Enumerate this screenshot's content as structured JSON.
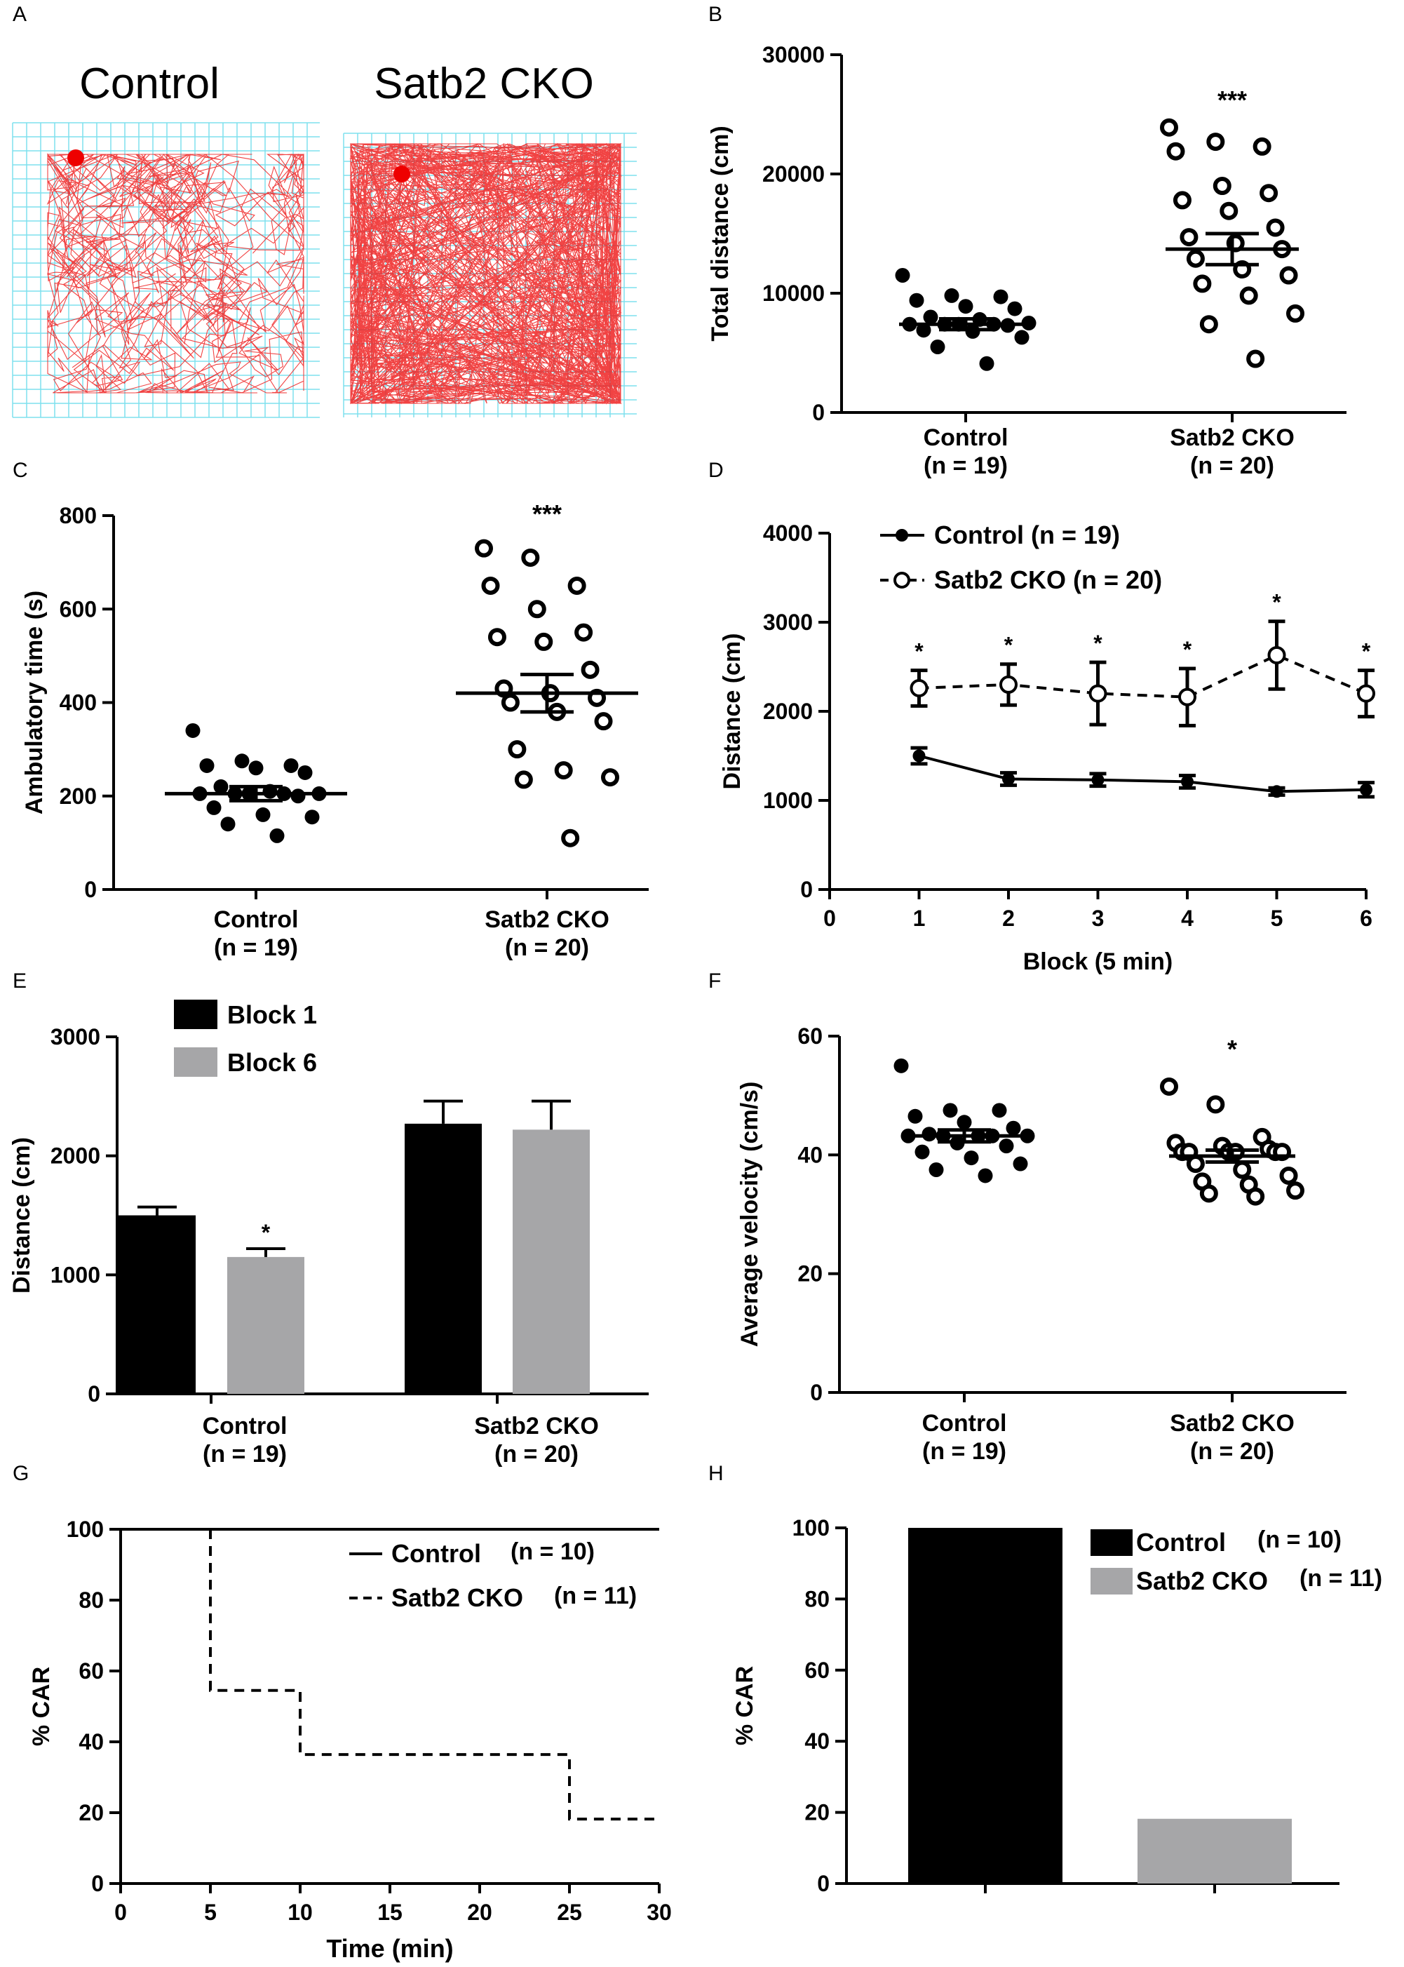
{
  "chart_data": [
    {
      "panel": "A",
      "type": "track_map",
      "labels": [
        "Control",
        "Satb2 CKO"
      ],
      "colors": {
        "track": "#ee2222",
        "grid": "#7fe0ee",
        "start": "#ee0000"
      }
    },
    {
      "panel": "B",
      "type": "scatter",
      "ylabel": "Total distance (cm)",
      "ylim": [
        0,
        30000
      ],
      "yticks": [
        0,
        10000,
        20000,
        30000
      ],
      "categories": [
        "Control\n(n = 19)",
        "Satb2 CKO\n(n = 20)"
      ],
      "significance": [
        "",
        "***"
      ],
      "series": [
        {
          "name": "Control",
          "filled": true,
          "mean": 7400,
          "sem": 450,
          "values": [
            11500,
            9800,
            9700,
            9400,
            8900,
            8700,
            8000,
            7800,
            7500,
            7400,
            7400,
            7400,
            7400,
            7300,
            6900,
            6800,
            6300,
            5500,
            4100
          ]
        },
        {
          "name": "Satb2 CKO",
          "filled": false,
          "mean": 13700,
          "sem": 1300,
          "values": [
            23900,
            22700,
            22300,
            21900,
            19000,
            18400,
            17800,
            16900,
            15500,
            14700,
            14200,
            13700,
            12900,
            12000,
            11500,
            10800,
            9800,
            8300,
            7400,
            4500
          ]
        }
      ]
    },
    {
      "panel": "C",
      "type": "scatter",
      "ylabel": "Ambulatory time (s)",
      "ylim": [
        0,
        800
      ],
      "yticks": [
        0,
        200,
        400,
        600,
        800
      ],
      "categories": [
        "Control\n(n = 19)",
        "Satb2 CKO\n(n = 20)"
      ],
      "significance": [
        "",
        "***"
      ],
      "series": [
        {
          "name": "Control",
          "filled": true,
          "mean": 205,
          "sem": 15,
          "values": [
            340,
            275,
            265,
            265,
            260,
            250,
            220,
            210,
            205,
            205,
            205,
            205,
            205,
            200,
            175,
            160,
            155,
            140,
            115
          ]
        },
        {
          "name": "Satb2 CKO",
          "filled": false,
          "mean": 420,
          "sem": 40,
          "values": [
            730,
            710,
            650,
            650,
            600,
            550,
            540,
            530,
            470,
            430,
            420,
            410,
            400,
            380,
            360,
            300,
            255,
            240,
            235,
            110
          ]
        }
      ]
    },
    {
      "panel": "D",
      "type": "line",
      "xlabel": "Block (5 min)",
      "ylabel": "Distance (cm)",
      "xlim": [
        0,
        6
      ],
      "ylim": [
        0,
        4000
      ],
      "xticks": [
        0,
        1,
        2,
        3,
        4,
        5,
        6
      ],
      "yticks": [
        0,
        1000,
        2000,
        3000,
        4000
      ],
      "x": [
        1,
        2,
        3,
        4,
        5,
        6
      ],
      "legend": "top-left",
      "significance": [
        "*",
        "*",
        "*",
        "*",
        "*",
        "*"
      ],
      "series": [
        {
          "name": "Control",
          "n_label": "(n = 19)",
          "style": "solid-filled",
          "values": [
            1500,
            1240,
            1230,
            1210,
            1100,
            1120
          ],
          "errors": [
            90,
            70,
            70,
            70,
            40,
            80
          ]
        },
        {
          "name": "Satb2 CKO",
          "n_label": "(n = 20)",
          "style": "dashed-open",
          "values": [
            2260,
            2300,
            2200,
            2160,
            2630,
            2200
          ],
          "errors": [
            200,
            230,
            350,
            320,
            380,
            260
          ]
        }
      ]
    },
    {
      "panel": "E",
      "type": "bar",
      "ylabel": "Distance (cm)",
      "ylim": [
        0,
        3000
      ],
      "yticks": [
        0,
        1000,
        2000,
        3000
      ],
      "categories": [
        "Control\n(n = 19)",
        "Satb2 CKO\n(n = 20)"
      ],
      "legend": "top-left",
      "series": [
        {
          "name": "Block 1",
          "color": "#000000",
          "values": [
            1500,
            2270
          ],
          "errors": [
            70,
            190
          ]
        },
        {
          "name": "Block 6",
          "color": "#a6a6a8",
          "values": [
            1150,
            2220
          ],
          "errors": [
            70,
            240
          ]
        }
      ],
      "significance": {
        "Block 6": [
          "*",
          ""
        ]
      }
    },
    {
      "panel": "F",
      "type": "scatter",
      "ylabel": "Average velocity (cm/s)",
      "ylim": [
        0,
        60
      ],
      "yticks": [
        0,
        20,
        40,
        60
      ],
      "categories": [
        "Control\n(n = 19)",
        "Satb2 CKO\n(n = 20)"
      ],
      "significance": [
        "",
        "*"
      ],
      "series": [
        {
          "name": "Control",
          "filled": true,
          "mean": 43.2,
          "sem": 1.0,
          "values": [
            55,
            47.5,
            47.5,
            46.5,
            45.5,
            44.5,
            43.5,
            43.2,
            43.2,
            43.2,
            43.2,
            43.2,
            42,
            41.5,
            40.5,
            39.5,
            38.5,
            37.5,
            36.5
          ]
        },
        {
          "name": "Satb2 CKO",
          "filled": false,
          "mean": 39.8,
          "sem": 1.0,
          "values": [
            51.5,
            48.5,
            43,
            42,
            41.5,
            41,
            40.5,
            40.5,
            40.5,
            40.5,
            40.5,
            40.5,
            38.5,
            37.5,
            36.5,
            35.5,
            35,
            34,
            33.5,
            33
          ]
        }
      ]
    },
    {
      "panel": "G",
      "type": "line",
      "xlabel": "Time (min)",
      "ylabel": "% CAR",
      "xlim": [
        0,
        30
      ],
      "ylim": [
        0,
        100
      ],
      "xticks": [
        0,
        5,
        10,
        15,
        20,
        25,
        30
      ],
      "yticks": [
        0,
        20,
        40,
        60,
        80,
        100
      ],
      "legend": "top-right",
      "series": [
        {
          "name": "Control",
          "n_label": "(n = 10)",
          "style": "solid-step",
          "x": [
            0,
            30
          ],
          "values": [
            100,
            100
          ]
        },
        {
          "name": "Satb2 CKO",
          "n_label": "(n = 11)",
          "style": "dashed-step",
          "x": [
            5,
            5,
            10,
            10,
            25,
            25,
            30
          ],
          "values": [
            100,
            54.5,
            54.5,
            36.4,
            36.4,
            18.2,
            18.2
          ]
        }
      ]
    },
    {
      "panel": "H",
      "type": "bar",
      "ylabel": "% CAR",
      "ylim": [
        0,
        100
      ],
      "yticks": [
        0,
        20,
        40,
        60,
        80,
        100
      ],
      "legend": "top-right",
      "series": [
        {
          "name": "Control",
          "n_label": "(n = 10)",
          "color": "#000000",
          "value": 100
        },
        {
          "name": "Satb2 CKO",
          "n_label": "(n = 11)",
          "color": "#a6a6a8",
          "value": 18.2
        }
      ]
    }
  ]
}
